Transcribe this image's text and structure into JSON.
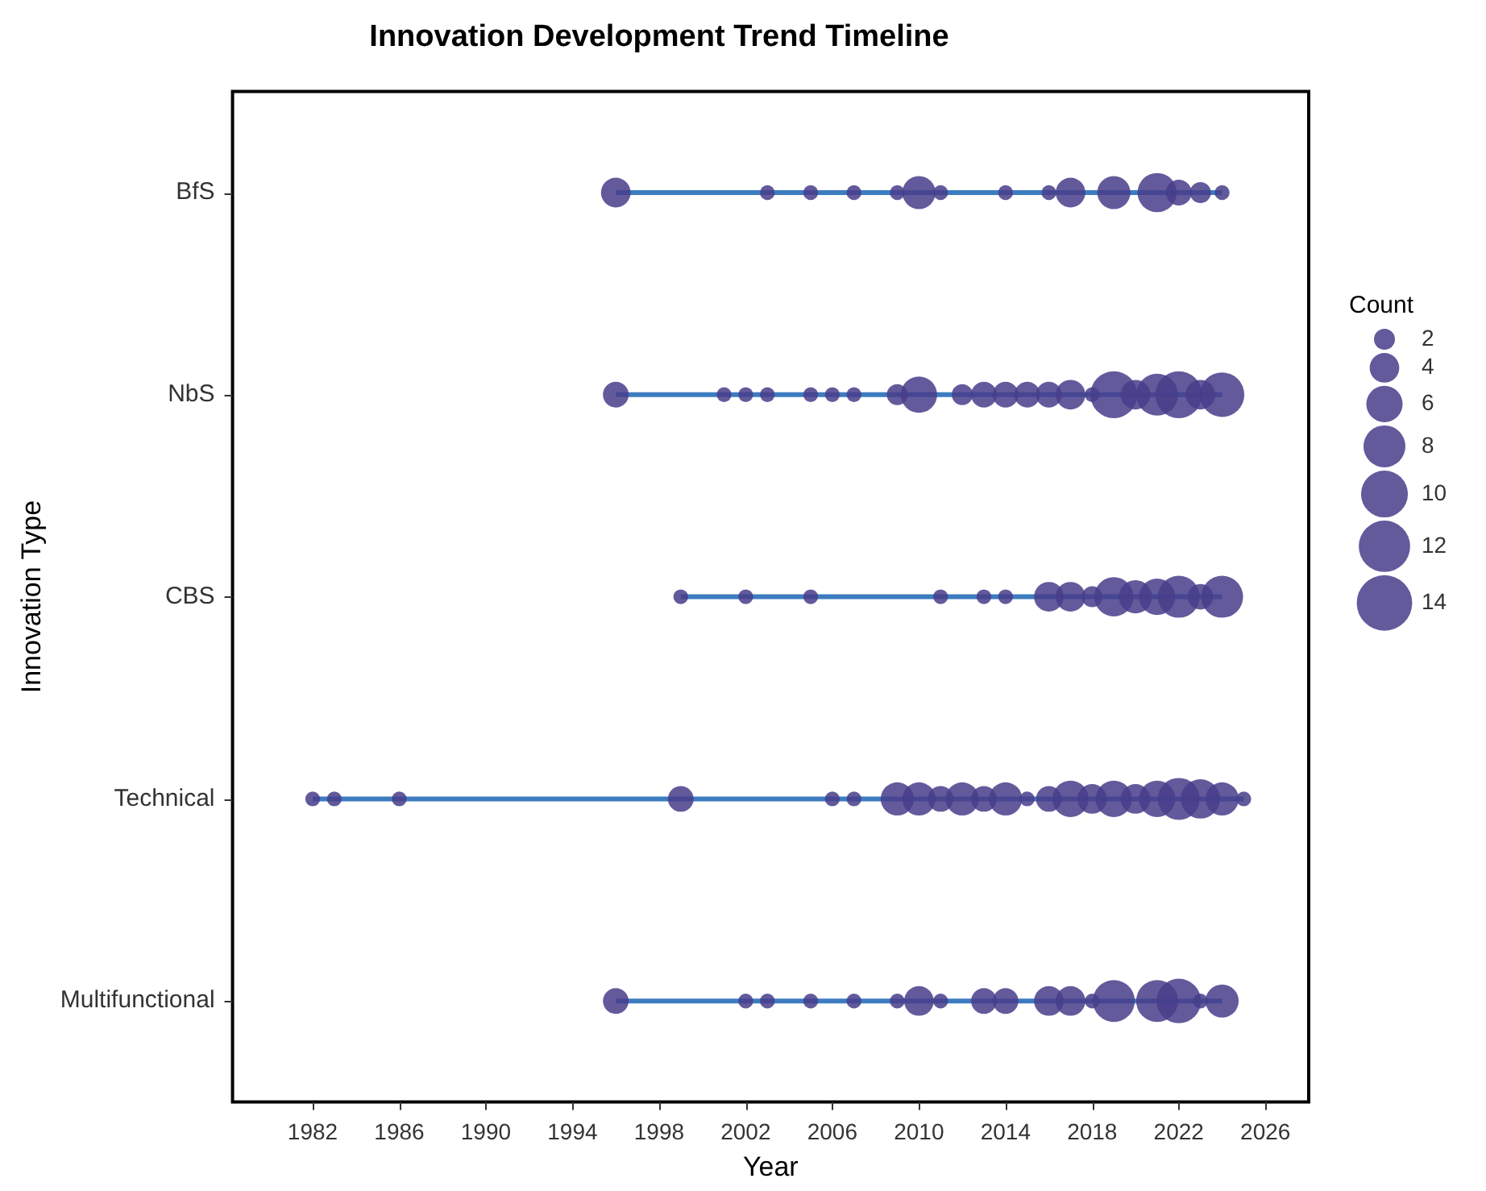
{
  "chart_data": {
    "type": "bubble",
    "title": "Innovation Development Trend Timeline",
    "xlabel": "Year",
    "ylabel": "Innovation Type",
    "legend_title": "Count",
    "grid": false,
    "categories": [
      "BfS",
      "NbS",
      "CBS",
      "Technical",
      "Multifunctional"
    ],
    "orientation": "horizontal",
    "xlim": [
      1978.3,
      2028
    ],
    "xticks": [
      1982,
      1986,
      1990,
      1994,
      1998,
      2002,
      2006,
      2010,
      2014,
      2018,
      2022,
      2026
    ],
    "size_legend": [
      2,
      4,
      6,
      8,
      10,
      12,
      14
    ],
    "series": [
      {
        "type": "line",
        "color": "#3d7cc0",
        "x": [
          "BfS",
          "BfS"
        ],
        "values": [
          1996,
          2024
        ]
      },
      {
        "type": "line",
        "color": "#3d7cc0",
        "x": [
          "NbS",
          "NbS"
        ],
        "values": [
          1996,
          2024
        ]
      },
      {
        "type": "line",
        "color": "#3d7cc0",
        "x": [
          "CBS",
          "CBS"
        ],
        "values": [
          1999,
          2024
        ]
      },
      {
        "type": "line",
        "color": "#3d7cc0",
        "x": [
          "Technical",
          "Technical"
        ],
        "values": [
          1982,
          2025
        ]
      },
      {
        "type": "line",
        "color": "#3d7cc0",
        "x": [
          "Multifunctional",
          "Multifunctional"
        ],
        "values": [
          1996,
          2024
        ]
      },
      {
        "color": "#483d8b",
        "x": [
          "BfS",
          "BfS",
          "BfS",
          "BfS",
          "BfS",
          "BfS",
          "BfS",
          "BfS",
          "BfS",
          "BfS",
          "BfS",
          "BfS",
          "BfS",
          "BfS",
          "BfS"
        ],
        "values": [
          1996,
          2003,
          2005,
          2007,
          2009,
          2010,
          2011,
          2014,
          2016,
          2017,
          2019,
          2021,
          2022,
          2023,
          2024
        ],
        "sizes": [
          4,
          1,
          1,
          1,
          1,
          5,
          1,
          1,
          1,
          4,
          5,
          7,
          3,
          2,
          1
        ]
      },
      {
        "color": "#483d8b",
        "x": [
          "NbS",
          "NbS",
          "NbS",
          "NbS",
          "NbS",
          "NbS",
          "NbS",
          "NbS",
          "NbS",
          "NbS",
          "NbS",
          "NbS",
          "NbS",
          "NbS",
          "NbS",
          "NbS",
          "NbS",
          "NbS",
          "NbS",
          "NbS",
          "NbS",
          "NbS"
        ],
        "values": [
          1996,
          2001,
          2002,
          2003,
          2005,
          2006,
          2007,
          2009,
          2010,
          2012,
          2013,
          2014,
          2015,
          2016,
          2017,
          2018,
          2019,
          2020,
          2021,
          2022,
          2023,
          2024
        ],
        "sizes": [
          3,
          1,
          1,
          1,
          1,
          1,
          1,
          2,
          6,
          2,
          3,
          3,
          3,
          3,
          4,
          1,
          10,
          4,
          8,
          10,
          4,
          9
        ]
      },
      {
        "color": "#483d8b",
        "x": [
          "CBS",
          "CBS",
          "CBS",
          "CBS",
          "CBS",
          "CBS",
          "CBS",
          "CBS",
          "CBS",
          "CBS",
          "CBS",
          "CBS",
          "CBS",
          "CBS",
          "CBS"
        ],
        "values": [
          1999,
          2002,
          2005,
          2011,
          2013,
          2014,
          2016,
          2017,
          2018,
          2019,
          2020,
          2021,
          2022,
          2023,
          2024
        ],
        "sizes": [
          1,
          1,
          1,
          1,
          1,
          1,
          4,
          4,
          2,
          7,
          5,
          6,
          8,
          3,
          8
        ]
      },
      {
        "color": "#483d8b",
        "x": [
          "Technical",
          "Technical",
          "Technical",
          "Technical",
          "Technical",
          "Technical",
          "Technical",
          "Technical",
          "Technical",
          "Technical",
          "Technical",
          "Technical",
          "Technical",
          "Technical",
          "Technical",
          "Technical",
          "Technical",
          "Technical",
          "Technical",
          "Technical",
          "Technical",
          "Technical",
          "Technical"
        ],
        "values": [
          1982,
          1983,
          1986,
          1999,
          2006,
          2007,
          2009,
          2010,
          2011,
          2012,
          2013,
          2014,
          2015,
          2016,
          2017,
          2018,
          2019,
          2020,
          2021,
          2022,
          2023,
          2024,
          2025
        ],
        "sizes": [
          1,
          1,
          1,
          3,
          1,
          1,
          5,
          5,
          3,
          5,
          3,
          5,
          1,
          3,
          6,
          4,
          6,
          4,
          6,
          8,
          7,
          5,
          1
        ]
      },
      {
        "color": "#483d8b",
        "x": [
          "Multifunctional",
          "Multifunctional",
          "Multifunctional",
          "Multifunctional",
          "Multifunctional",
          "Multifunctional",
          "Multifunctional",
          "Multifunctional",
          "Multifunctional",
          "Multifunctional",
          "Multifunctional",
          "Multifunctional",
          "Multifunctional",
          "Multifunctional",
          "Multifunctional",
          "Multifunctional",
          "Multifunctional",
          "Multifunctional"
        ],
        "values": [
          1996,
          2002,
          2003,
          2005,
          2007,
          2009,
          2010,
          2011,
          2013,
          2014,
          2016,
          2017,
          2018,
          2019,
          2021,
          2022,
          2023,
          2024
        ],
        "sizes": [
          3,
          1,
          1,
          1,
          1,
          1,
          4,
          1,
          3,
          3,
          4,
          4,
          1,
          8,
          8,
          9,
          1,
          5
        ]
      }
    ]
  }
}
